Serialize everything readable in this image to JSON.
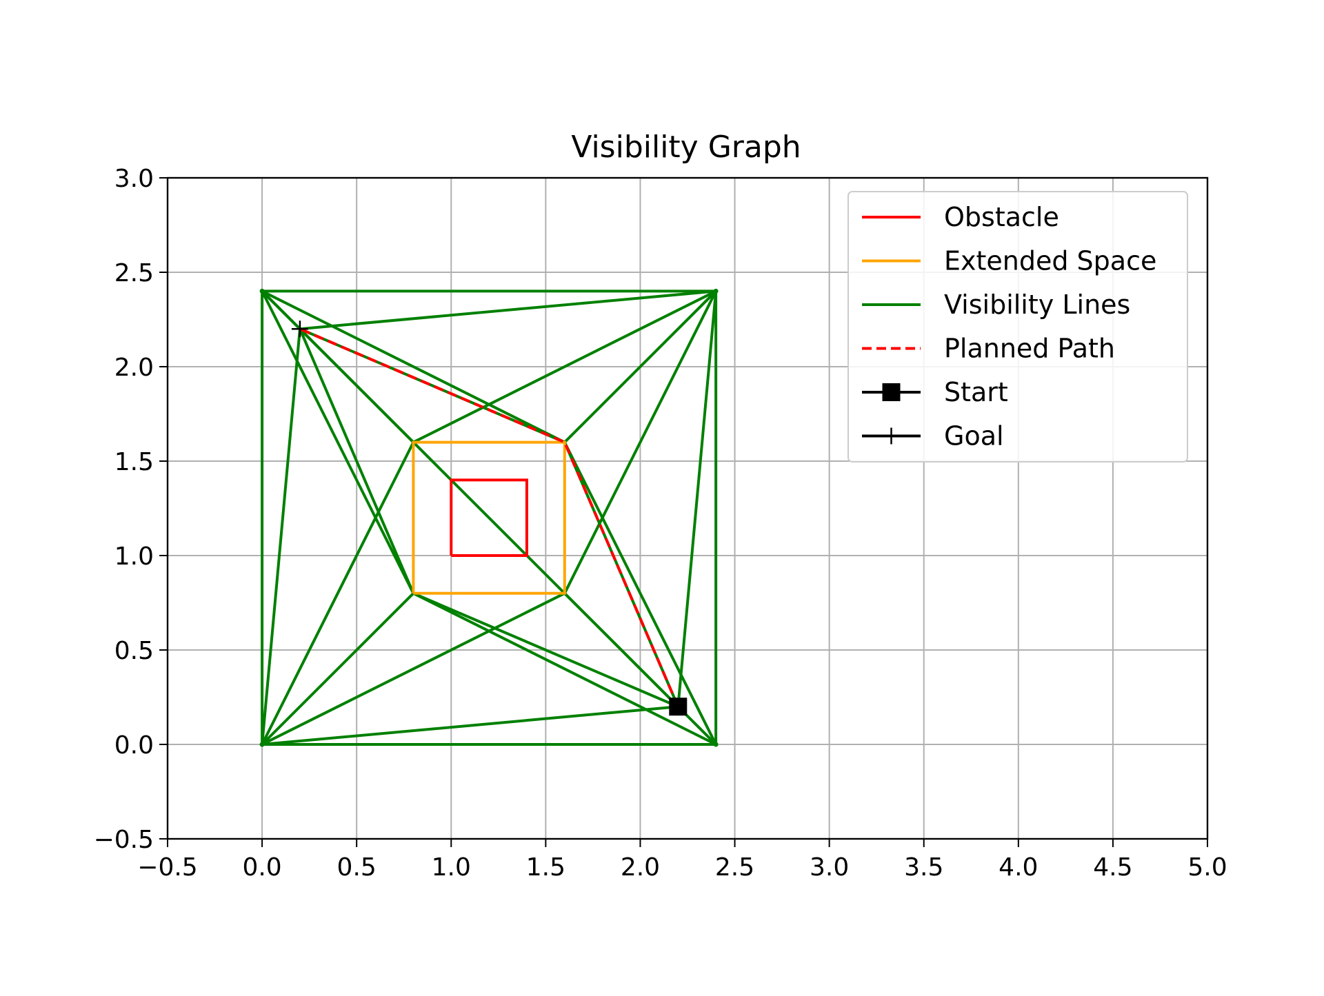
{
  "chart_data": {
    "type": "line",
    "title": "Visibility Graph",
    "xlabel": "",
    "ylabel": "",
    "xlim": [
      -0.5,
      5.0
    ],
    "ylim": [
      -0.5,
      3.0
    ],
    "xticks": [
      -0.5,
      0.0,
      0.5,
      1.0,
      1.5,
      2.0,
      2.5,
      3.0,
      3.5,
      4.0,
      4.5,
      5.0
    ],
    "yticks": [
      -0.5,
      0.0,
      0.5,
      1.0,
      1.5,
      2.0,
      2.5,
      3.0
    ],
    "xtick_labels": [
      "−0.5",
      "0.0",
      "0.5",
      "1.0",
      "1.5",
      "2.0",
      "2.5",
      "3.0",
      "3.5",
      "4.0",
      "4.5",
      "5.0"
    ],
    "ytick_labels": [
      "−0.5",
      "0.0",
      "0.5",
      "1.0",
      "1.5",
      "2.0",
      "2.5",
      "3.0"
    ],
    "grid": true,
    "legend_position": "top-right",
    "colors": {
      "obstacle": "#ff0000",
      "extended": "#ffa500",
      "visibility": "#008000",
      "path": "#ff0000",
      "marker": "#000000",
      "grid": "#b0b0b0"
    },
    "series": [
      {
        "name": "Obstacle",
        "style": "solid",
        "x": [
          1.0,
          1.4,
          1.4,
          1.0,
          1.0
        ],
        "y": [
          1.0,
          1.0,
          1.4,
          1.4,
          1.0
        ]
      },
      {
        "name": "Extended Space",
        "style": "solid",
        "x": [
          0.8,
          1.6,
          1.6,
          0.8,
          0.8
        ],
        "y": [
          0.8,
          0.8,
          1.6,
          1.6,
          0.8
        ]
      },
      {
        "name": "Visibility Lines",
        "style": "solid",
        "segments": [
          [
            [
              0.0,
              0.0
            ],
            [
              2.4,
              0.0
            ]
          ],
          [
            [
              2.4,
              0.0
            ],
            [
              2.4,
              2.4
            ]
          ],
          [
            [
              2.4,
              2.4
            ],
            [
              0.0,
              2.4
            ]
          ],
          [
            [
              0.0,
              2.4
            ],
            [
              0.0,
              0.0
            ]
          ],
          [
            [
              0.0,
              2.4
            ],
            [
              0.2,
              2.2
            ]
          ],
          [
            [
              0.0,
              2.4
            ],
            [
              0.8,
              1.6
            ]
          ],
          [
            [
              0.0,
              2.4
            ],
            [
              0.8,
              0.8
            ]
          ],
          [
            [
              0.0,
              2.4
            ],
            [
              1.6,
              1.6
            ]
          ],
          [
            [
              0.2,
              2.2
            ],
            [
              2.4,
              2.4
            ]
          ],
          [
            [
              0.2,
              2.2
            ],
            [
              0.0,
              0.0
            ]
          ],
          [
            [
              0.2,
              2.2
            ],
            [
              0.8,
              0.8
            ]
          ],
          [
            [
              0.2,
              2.2
            ],
            [
              1.6,
              1.6
            ]
          ],
          [
            [
              0.2,
              2.2
            ],
            [
              2.4,
              0.0
            ]
          ],
          [
            [
              2.4,
              2.4
            ],
            [
              0.8,
              1.6
            ]
          ],
          [
            [
              2.4,
              2.4
            ],
            [
              1.6,
              1.6
            ]
          ],
          [
            [
              2.4,
              2.4
            ],
            [
              1.6,
              0.8
            ]
          ],
          [
            [
              2.4,
              2.4
            ],
            [
              2.2,
              0.2
            ]
          ],
          [
            [
              0.0,
              0.0
            ],
            [
              0.8,
              1.6
            ]
          ],
          [
            [
              0.0,
              0.0
            ],
            [
              0.8,
              0.8
            ]
          ],
          [
            [
              0.0,
              0.0
            ],
            [
              1.6,
              0.8
            ]
          ],
          [
            [
              0.0,
              0.0
            ],
            [
              2.2,
              0.2
            ]
          ],
          [
            [
              0.8,
              0.8
            ],
            [
              2.2,
              0.2
            ]
          ],
          [
            [
              0.8,
              0.8
            ],
            [
              2.4,
              0.0
            ]
          ],
          [
            [
              1.6,
              0.8
            ],
            [
              2.2,
              0.2
            ]
          ],
          [
            [
              1.6,
              1.6
            ],
            [
              2.2,
              0.2
            ]
          ],
          [
            [
              1.6,
              1.6
            ],
            [
              2.4,
              0.0
            ]
          ]
        ]
      },
      {
        "name": "Planned Path",
        "style": "dashed",
        "x": [
          2.2,
          1.6,
          0.2
        ],
        "y": [
          0.2,
          1.6,
          2.2
        ]
      },
      {
        "name": "Start",
        "marker": "square",
        "x": [
          2.2
        ],
        "y": [
          0.2
        ]
      },
      {
        "name": "Goal",
        "marker": "plus",
        "x": [
          0.2
        ],
        "y": [
          2.2
        ]
      }
    ]
  }
}
